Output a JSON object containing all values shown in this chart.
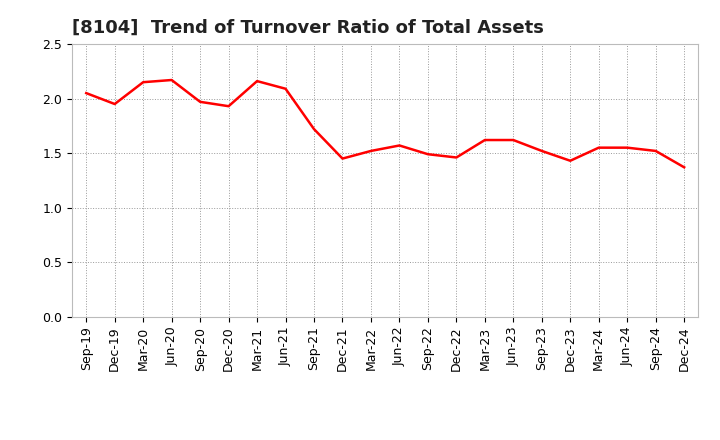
{
  "title": "[8104]  Trend of Turnover Ratio of Total Assets",
  "labels": [
    "Sep-19",
    "Dec-19",
    "Mar-20",
    "Jun-20",
    "Sep-20",
    "Dec-20",
    "Mar-21",
    "Jun-21",
    "Sep-21",
    "Dec-21",
    "Mar-22",
    "Jun-22",
    "Sep-22",
    "Dec-22",
    "Mar-23",
    "Jun-23",
    "Sep-23",
    "Dec-23",
    "Mar-24",
    "Jun-24",
    "Sep-24",
    "Dec-24"
  ],
  "values": [
    2.05,
    1.95,
    2.15,
    2.17,
    1.97,
    1.93,
    2.16,
    2.09,
    1.72,
    1.45,
    1.52,
    1.57,
    1.49,
    1.46,
    1.62,
    1.62,
    1.52,
    1.43,
    1.55,
    1.55,
    1.52,
    1.37
  ],
  "line_color": "#ff0000",
  "line_width": 1.8,
  "ylim": [
    0.0,
    2.5
  ],
  "yticks": [
    0.0,
    0.5,
    1.0,
    1.5,
    2.0,
    2.5
  ],
  "background_color": "#ffffff",
  "grid_color": "#999999",
  "title_fontsize": 13,
  "tick_fontsize": 9,
  "title_color": "#222222"
}
